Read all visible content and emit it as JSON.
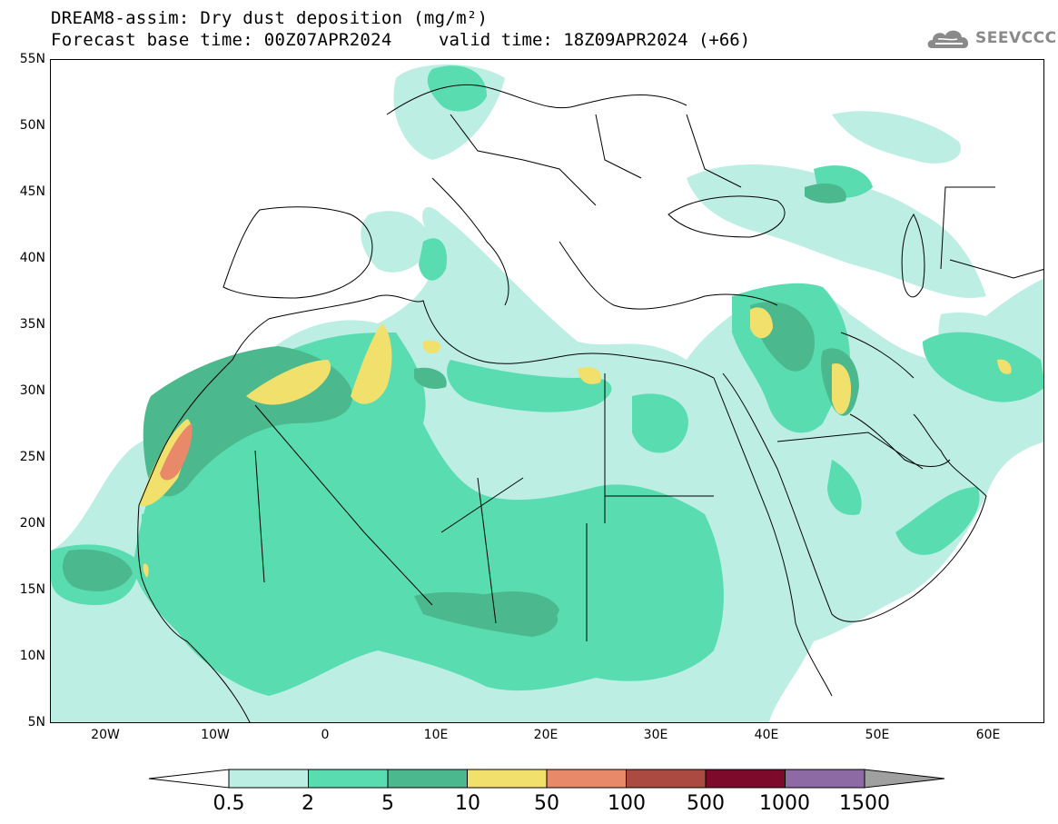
{
  "header": {
    "title": "DREAM8-assim: Dry dust deposition (mg/m²)",
    "base_time": "Forecast base time: 00Z07APR2024",
    "valid_time": "valid time: 18Z09APR2024 (+66)"
  },
  "logo": {
    "text": "SEEVCCC",
    "icon": "cloud-icon"
  },
  "map": {
    "region": "North Africa, Europe, Middle East",
    "lon_range": [
      -25,
      65
    ],
    "lat_range": [
      5,
      55
    ],
    "lat_labels": [
      "55N",
      "50N",
      "45N",
      "40N",
      "35N",
      "30N",
      "25N",
      "20N",
      "15N",
      "10N",
      "5N"
    ],
    "lon_labels": [
      "20W",
      "10W",
      "0",
      "10E",
      "20E",
      "30E",
      "40E",
      "50E",
      "60E"
    ]
  },
  "legend": {
    "labels": [
      "0.5",
      "2",
      "5",
      "10",
      "50",
      "100",
      "500",
      "1000",
      "1500"
    ],
    "colors": [
      "#bdeee4",
      "#58dcb0",
      "#4cb88e",
      "#f2e06c",
      "#e8896a",
      "#ab4a40",
      "#7d0a2a",
      "#8d6aa4",
      "#a0a0a0"
    ],
    "lower_arrow_color": "#ffffff",
    "upper_arrow_color": "#a0a0a0"
  },
  "colors": {
    "level1": "#bdeee4",
    "level2": "#58dcb0",
    "level3": "#4cb88e",
    "level4": "#f2e06c",
    "level5": "#e8896a"
  }
}
